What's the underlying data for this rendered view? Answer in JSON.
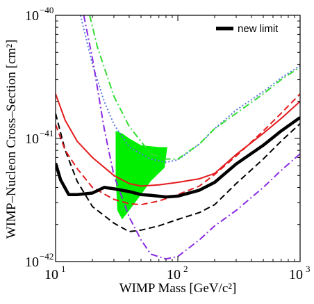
{
  "chart_data": {
    "type": "line",
    "xlabel": "WIMP Mass [GeV/c²]",
    "ylabel": "WIMP–Nucleon Cross–Section [cm²]",
    "xscale": "log",
    "yscale": "log",
    "xlim": [
      10,
      1000
    ],
    "ylim": [
      1e-42,
      1e-40
    ],
    "x_ticks": [
      {
        "value": 10,
        "base": "10",
        "exp": "1"
      },
      {
        "value": 100,
        "base": "10",
        "exp": "2"
      },
      {
        "value": 1000,
        "base": "10",
        "exp": "3"
      }
    ],
    "y_ticks": [
      {
        "value": 1e-42,
        "base": "10",
        "exp": "−42"
      },
      {
        "value": 1e-41,
        "base": "10",
        "exp": "−41"
      },
      {
        "value": 1e-40,
        "base": "10",
        "exp": "−40"
      }
    ],
    "grid": false,
    "legend": {
      "position": "top-right",
      "entries": [
        {
          "label": "new limit",
          "series_index": 0
        }
      ]
    },
    "series": [
      {
        "name": "new limit",
        "color": "#000000",
        "style": "solid",
        "width": 4.5,
        "points": [
          [
            10,
            6.3e-42
          ],
          [
            11,
            4.6e-42
          ],
          [
            12.8,
            3.5e-42
          ],
          [
            15,
            3.5e-42
          ],
          [
            20,
            3.6e-42
          ],
          [
            25,
            4e-42
          ],
          [
            30,
            3.9e-42
          ],
          [
            40,
            3.7e-42
          ],
          [
            50,
            3.5e-42
          ],
          [
            60,
            3.45e-42
          ],
          [
            80,
            3.35e-42
          ],
          [
            100,
            3.4e-42
          ],
          [
            150,
            3.8e-42
          ],
          [
            200,
            4.4e-42
          ],
          [
            300,
            6.2e-42
          ],
          [
            500,
            8.8e-42
          ],
          [
            700,
            1.15e-41
          ],
          [
            1000,
            1.48e-41
          ]
        ]
      },
      {
        "color": "#e41a1c",
        "style": "solid",
        "width": 2,
        "points": [
          [
            10,
            2.3e-41
          ],
          [
            12,
            1.4e-41
          ],
          [
            15,
            9.5e-42
          ],
          [
            20,
            7e-42
          ],
          [
            30,
            5e-42
          ],
          [
            40,
            4.3e-42
          ],
          [
            50,
            4.1e-42
          ],
          [
            70,
            4.2e-42
          ],
          [
            100,
            4.4e-42
          ],
          [
            150,
            4.7e-42
          ],
          [
            200,
            5.2e-42
          ],
          [
            300,
            7.4e-42
          ],
          [
            500,
            1.1e-41
          ],
          [
            700,
            1.45e-41
          ],
          [
            1000,
            2e-41
          ]
        ]
      },
      {
        "color": "#e41a1c",
        "style": "dashed",
        "width": 2,
        "points": [
          [
            10,
            1.3e-41
          ],
          [
            12,
            8e-42
          ],
          [
            15,
            5.7e-42
          ],
          [
            20,
            4e-42
          ],
          [
            30,
            3.2e-42
          ],
          [
            40,
            2.95e-42
          ],
          [
            50,
            2.9e-42
          ],
          [
            70,
            3.1e-42
          ],
          [
            100,
            3.5e-42
          ],
          [
            150,
            4.1e-42
          ],
          [
            200,
            5.1e-42
          ],
          [
            300,
            7.2e-42
          ],
          [
            500,
            1.15e-41
          ],
          [
            700,
            1.6e-41
          ],
          [
            1000,
            2.3e-41
          ]
        ]
      },
      {
        "color": "#000000",
        "style": "dashed",
        "width": 2,
        "points": [
          [
            10,
            1.6e-41
          ],
          [
            12,
            8e-42
          ],
          [
            15,
            4.5e-42
          ],
          [
            20,
            2.8e-42
          ],
          [
            30,
            2.05e-42
          ],
          [
            40,
            1.75e-42
          ],
          [
            50,
            1.8e-42
          ],
          [
            70,
            1.95e-42
          ],
          [
            100,
            2.2e-42
          ],
          [
            150,
            2.5e-42
          ],
          [
            200,
            2.9e-42
          ],
          [
            300,
            4.3e-42
          ],
          [
            500,
            6.8e-42
          ],
          [
            700,
            9.5e-42
          ],
          [
            1000,
            1.32e-41
          ]
        ]
      },
      {
        "color": "#8a2be2",
        "style": "dashdot",
        "width": 2,
        "points": [
          [
            17,
            1e-40
          ],
          [
            20,
            4.5e-41
          ],
          [
            25,
            1.2e-41
          ],
          [
            30,
            5e-42
          ],
          [
            40,
            2.3e-42
          ],
          [
            50,
            1.5e-42
          ],
          [
            60,
            1.15e-42
          ],
          [
            80,
            1.05e-42
          ],
          [
            100,
            1.1e-42
          ],
          [
            150,
            1.5e-42
          ],
          [
            200,
            1.95e-42
          ],
          [
            300,
            2.6e-42
          ],
          [
            500,
            4e-42
          ],
          [
            700,
            5.5e-42
          ],
          [
            1000,
            7.5e-42
          ]
        ]
      },
      {
        "color": "#33dd33",
        "style": "dashdot",
        "width": 2,
        "points": [
          [
            19,
            1e-40
          ],
          [
            22,
            5.5e-41
          ],
          [
            30,
            2.2e-41
          ],
          [
            40,
            1.25e-41
          ],
          [
            60,
            7.5e-42
          ],
          [
            80,
            6.8e-42
          ],
          [
            100,
            6.8e-42
          ],
          [
            150,
            9e-42
          ],
          [
            200,
            1.2e-41
          ],
          [
            300,
            1.6e-41
          ],
          [
            500,
            2.3e-41
          ],
          [
            700,
            3e-41
          ],
          [
            1000,
            3.8e-41
          ]
        ]
      },
      {
        "color": "#5577dd",
        "style": "dotted",
        "width": 2,
        "points": [
          [
            16,
            1e-40
          ],
          [
            20,
            4e-41
          ],
          [
            25,
            2e-41
          ],
          [
            30,
            1.3e-41
          ],
          [
            40,
            8.5e-42
          ],
          [
            60,
            6.8e-42
          ],
          [
            80,
            6.4e-42
          ],
          [
            100,
            6.7e-42
          ],
          [
            150,
            9e-42
          ],
          [
            200,
            1.2e-41
          ],
          [
            300,
            1.7e-41
          ],
          [
            500,
            2.4e-41
          ],
          [
            700,
            3.1e-41
          ],
          [
            1000,
            3.9e-41
          ]
        ]
      },
      {
        "color": "#00ee00",
        "style": "filled",
        "width": 0,
        "points": [
          [
            31,
            1.15e-41
          ],
          [
            35,
            1.1e-41
          ],
          [
            40,
            1e-41
          ],
          [
            50,
            8.8e-42
          ],
          [
            70,
            8.5e-42
          ],
          [
            82,
            8.5e-42
          ],
          [
            78,
            5.8e-42
          ],
          [
            60,
            4.5e-42
          ],
          [
            50,
            3.5e-42
          ],
          [
            40,
            2.6e-42
          ],
          [
            35,
            2.2e-42
          ],
          [
            32,
            2.6e-42
          ],
          [
            31,
            5e-42
          ]
        ]
      }
    ]
  }
}
